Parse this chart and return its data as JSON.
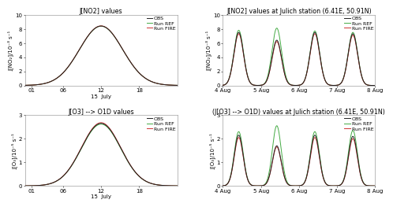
{
  "title_ul": "J[NO2] values",
  "title_ur": "J[NO2] values at Julich station (6.41E, 50.91N)",
  "title_ll": "J[O3] --> O1D values",
  "title_lr": "(J[O3] --> O1D) values at Julich station (6.41E, 50.91N)",
  "ylabel_no2_left": "J[NO2]/10-3 s-1",
  "ylabel_o3_left": "J[O3]/10-5 s-1",
  "legend_labels": [
    "OBS",
    "Run REF",
    "Run FIRE"
  ],
  "color_obs": "#222222",
  "color_ref": "#44aa44",
  "color_fire": "#cc3333",
  "ylim_no2": [
    0,
    10
  ],
  "ylim_o3": [
    0,
    3
  ],
  "yticks_no2": [
    0,
    2,
    4,
    6,
    8,
    10
  ],
  "yticks_o3": [
    0,
    1,
    2,
    3
  ],
  "bg_color": "#ffffff",
  "title_fontsize": 5.8,
  "label_fontsize": 5.0,
  "tick_fontsize": 5.0,
  "legend_fontsize": 4.5,
  "lw_obs": 0.7,
  "lw_ref": 0.7,
  "lw_fire": 0.7
}
